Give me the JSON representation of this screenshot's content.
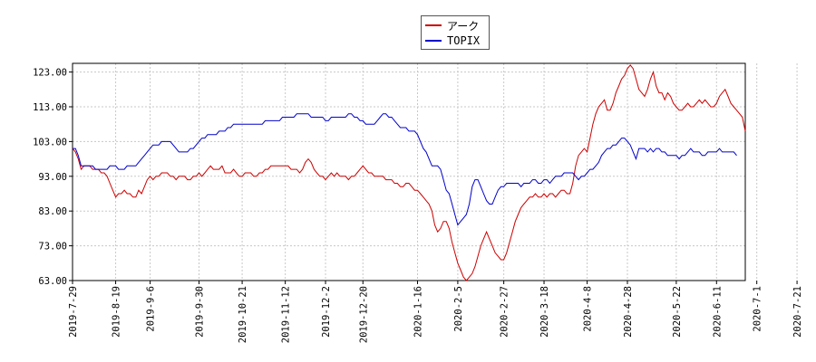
{
  "chart_data": {
    "type": "line",
    "title": "",
    "xlabel": "",
    "ylabel": "",
    "ylim": [
      63.0,
      125.5
    ],
    "yticks": [
      "123.00",
      "113.00",
      "103.00",
      "93.00",
      "83.00",
      "73.00",
      "63.00"
    ],
    "ytick_values": [
      123,
      113,
      103,
      93,
      83,
      73,
      63
    ],
    "xticks": [
      "2019-7-29",
      "2019-8-19",
      "2019-9-6",
      "2019-9-30",
      "2019-10-21",
      "2019-11-12",
      "2019-12-2",
      "2019-12-20",
      "2020-1-16",
      "2020-2-5",
      "2020-2-27",
      "2020-3-18",
      "2020-4-8",
      "2020-4-28",
      "2020-5-22",
      "2020-6-11",
      "2020-7-1",
      "2020-7-21"
    ],
    "xtick_index": [
      0,
      15,
      27,
      44,
      59,
      74,
      88,
      101,
      120,
      134,
      150,
      164,
      179,
      193,
      210,
      224,
      238,
      252
    ],
    "grid": true,
    "legend_position": "top-center",
    "series": [
      {
        "name": "アーク",
        "color": "#cc0000",
        "values": [
          101,
          100,
          98,
          95,
          96,
          96,
          96,
          95,
          95,
          95,
          94,
          94,
          93,
          91,
          89,
          87,
          88,
          88,
          89,
          88,
          88,
          87,
          87,
          89,
          88,
          90,
          92,
          93,
          92,
          93,
          93,
          94,
          94,
          94,
          93,
          93,
          92,
          93,
          93,
          93,
          92,
          92,
          93,
          93,
          94,
          93,
          94,
          95,
          96,
          95,
          95,
          95,
          96,
          94,
          94,
          94,
          95,
          94,
          93,
          93,
          94,
          94,
          94,
          93,
          93,
          94,
          94,
          95,
          95,
          96,
          96,
          96,
          96,
          96,
          96,
          96,
          95,
          95,
          95,
          94,
          95,
          97,
          98,
          97,
          95,
          94,
          93,
          93,
          92,
          93,
          94,
          93,
          94,
          93,
          93,
          93,
          92,
          93,
          93,
          94,
          95,
          96,
          95,
          94,
          94,
          93,
          93,
          93,
          93,
          92,
          92,
          92,
          91,
          91,
          90,
          90,
          91,
          91,
          90,
          89,
          89,
          88,
          87,
          86,
          85,
          83,
          79,
          77,
          78,
          80,
          80,
          78,
          74,
          71,
          68,
          66,
          64,
          63,
          64,
          65,
          67,
          70,
          73,
          75,
          77,
          75,
          73,
          71,
          70,
          69,
          69,
          71,
          74,
          77,
          80,
          82,
          84,
          85,
          86,
          87,
          87,
          88,
          87,
          87,
          88,
          87,
          88,
          88,
          87,
          88,
          89,
          89,
          88,
          88,
          91,
          96,
          99,
          100,
          101,
          100,
          104,
          108,
          111,
          113,
          114,
          115,
          112,
          112,
          114,
          117,
          119,
          121,
          122,
          124,
          125,
          124,
          121,
          118,
          117,
          116,
          118,
          121,
          123,
          119,
          117,
          117,
          115,
          117,
          116,
          114,
          113,
          112,
          112,
          113,
          114,
          113,
          113,
          114,
          115,
          114,
          115,
          114,
          113,
          113,
          114,
          116,
          117,
          118,
          116,
          114,
          113,
          112,
          111,
          110,
          106
        ],
        "color_note": "red"
      },
      {
        "name": "TOPIX",
        "color": "#0000cc",
        "values": [
          101,
          101,
          99,
          96,
          96,
          96,
          96,
          96,
          95,
          95,
          95,
          95,
          95,
          96,
          96,
          96,
          95,
          95,
          95,
          96,
          96,
          96,
          96,
          97,
          98,
          99,
          100,
          101,
          102,
          102,
          102,
          103,
          103,
          103,
          103,
          102,
          101,
          100,
          100,
          100,
          100,
          101,
          101,
          102,
          103,
          104,
          104,
          105,
          105,
          105,
          105,
          106,
          106,
          106,
          107,
          107,
          108,
          108,
          108,
          108,
          108,
          108,
          108,
          108,
          108,
          108,
          108,
          109,
          109,
          109,
          109,
          109,
          109,
          110,
          110,
          110,
          110,
          110,
          111,
          111,
          111,
          111,
          111,
          110,
          110,
          110,
          110,
          110,
          109,
          109,
          110,
          110,
          110,
          110,
          110,
          110,
          111,
          111,
          110,
          110,
          109,
          109,
          108,
          108,
          108,
          108,
          109,
          110,
          111,
          111,
          110,
          110,
          109,
          108,
          107,
          107,
          107,
          106,
          106,
          106,
          105,
          103,
          101,
          100,
          98,
          96,
          96,
          96,
          95,
          92,
          89,
          88,
          85,
          82,
          79,
          80,
          81,
          82,
          85,
          90,
          92,
          92,
          90,
          88,
          86,
          85,
          85,
          87,
          89,
          90,
          90,
          91,
          91,
          91,
          91,
          91,
          90,
          91,
          91,
          91,
          92,
          92,
          91,
          91,
          92,
          92,
          91,
          92,
          93,
          93,
          93,
          94,
          94,
          94,
          94,
          93,
          92,
          93,
          93,
          94,
          95,
          95,
          96,
          97,
          99,
          100,
          101,
          101,
          102,
          102,
          103,
          104,
          104,
          103,
          102,
          100,
          98,
          101,
          101,
          101,
          100,
          101,
          100,
          101,
          101,
          100,
          100,
          99,
          99,
          99,
          99,
          98,
          99,
          99,
          100,
          101,
          100,
          100,
          100,
          99,
          99,
          100,
          100,
          100,
          100,
          101,
          100,
          100,
          100,
          100,
          100,
          99
        ]
      }
    ]
  }
}
